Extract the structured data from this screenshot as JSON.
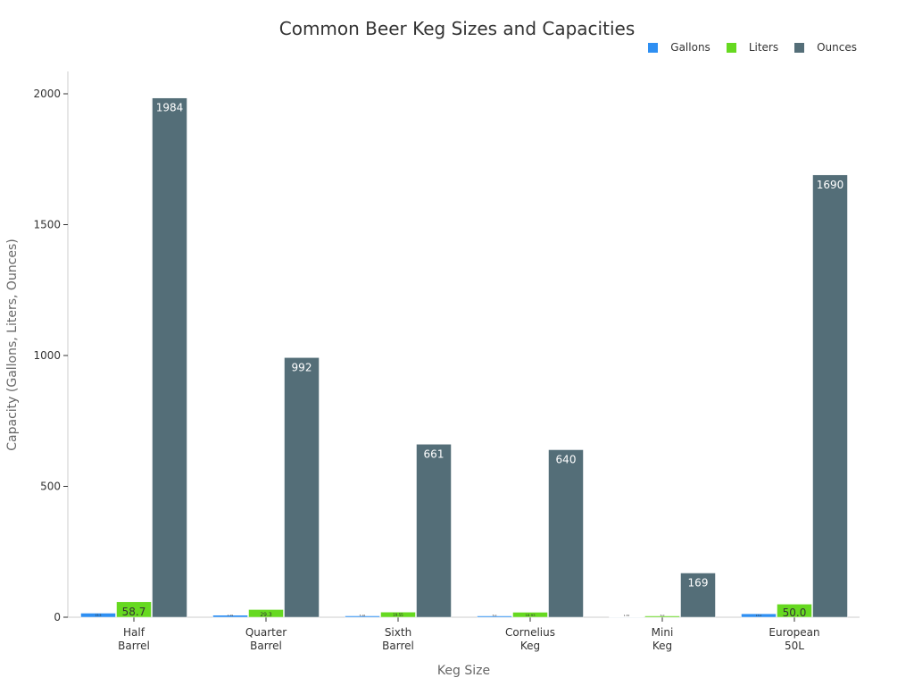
{
  "chart_data": {
    "type": "bar",
    "title": "Common Beer Keg Sizes and Capacities",
    "xlabel": "Keg Size",
    "ylabel": "Capacity (Gallons, Liters, Ounces)",
    "categories": [
      "Half Barrel",
      "Quarter Barrel",
      "Sixth Barrel",
      "Cornelius Keg",
      "Mini Keg",
      "European 50L"
    ],
    "ylim": [
      0,
      2090
    ],
    "yticks": [
      0,
      500,
      1000,
      1500,
      2000
    ],
    "grid": false,
    "legend": "top-right",
    "series": [
      {
        "name": "Gallons",
        "color": "#2e8ff2",
        "values": [
          15.5,
          7.75,
          5.16,
          5.0,
          1.32,
          13.2
        ],
        "labels": [
          "15.5",
          "7.75",
          "5.16",
          "5.0",
          "1.32",
          "13.2"
        ]
      },
      {
        "name": "Liters",
        "color": "#66d920",
        "values": [
          58.7,
          29.3,
          19.55,
          18.93,
          5.0,
          50.0
        ],
        "labels": [
          "58.7",
          "29.3",
          "19.55",
          "18.93",
          "5.0",
          "50.0"
        ]
      },
      {
        "name": "Ounces",
        "color": "#546e78",
        "values": [
          1984,
          992,
          661,
          640,
          169,
          1690
        ],
        "labels": [
          "1984",
          "992",
          "661",
          "640",
          "169",
          "1690"
        ]
      }
    ]
  }
}
